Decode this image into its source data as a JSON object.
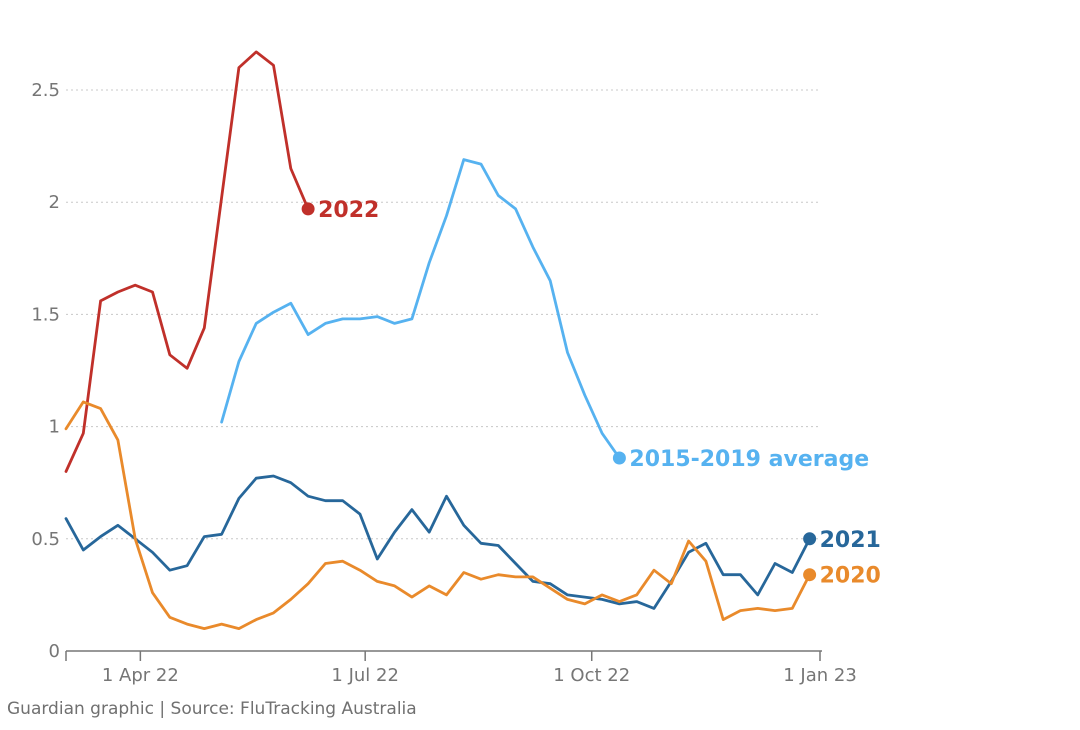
{
  "source": "Guardian graphic | Source: FluTracking Australia",
  "chart_data": {
    "type": "line",
    "y_ticks": [
      0,
      0.5,
      1,
      1.5,
      2,
      2.5
    ],
    "y_tick_labels": [
      "0",
      "0.5",
      "1",
      "1.5",
      "2",
      "2.5"
    ],
    "ylim": [
      0,
      2.65
    ],
    "x_ticks": [
      {
        "week": 4.3,
        "label": "1 Apr 22"
      },
      {
        "week": 17.3,
        "label": "1 Jul 22"
      },
      {
        "week": 30.4,
        "label": "1 Oct 22"
      },
      {
        "week": 43.6,
        "label": "1 Jan 23"
      }
    ],
    "xlim": [
      0,
      43.6
    ],
    "grid": true,
    "series": [
      {
        "name": "2022",
        "color": "#c0302a",
        "label_dx": 10,
        "values": [
          0.8,
          0.97,
          1.56,
          1.6,
          1.63,
          1.6,
          1.32,
          1.26,
          1.44,
          2.02,
          2.6,
          2.67,
          2.61,
          2.15,
          1.97
        ]
      },
      {
        "name": "2015-2019 average",
        "color": "#56b2f0",
        "label_dx": 10,
        "values": [
          null,
          null,
          null,
          null,
          null,
          null,
          null,
          null,
          null,
          1.02,
          1.29,
          1.46,
          1.51,
          1.55,
          1.41,
          1.46,
          1.48,
          1.48,
          1.49,
          1.46,
          1.48,
          1.73,
          1.94,
          2.19,
          2.17,
          2.03,
          1.97,
          1.8,
          1.65,
          1.33,
          1.14,
          0.97,
          0.86
        ]
      },
      {
        "name": "2021",
        "color": "#27679a",
        "label_dx": 10,
        "values": [
          0.59,
          0.45,
          0.51,
          0.56,
          0.5,
          0.44,
          0.36,
          0.38,
          0.51,
          0.52,
          0.68,
          0.77,
          0.78,
          0.75,
          0.69,
          0.67,
          0.67,
          0.61,
          0.41,
          0.53,
          0.63,
          0.53,
          0.69,
          0.56,
          0.48,
          0.47,
          0.39,
          0.31,
          0.3,
          0.25,
          0.24,
          0.23,
          0.21,
          0.22,
          0.19,
          0.31,
          0.44,
          0.48,
          0.34,
          0.34,
          0.25,
          0.39,
          0.35,
          0.5
        ]
      },
      {
        "name": "2020",
        "color": "#e98a2b",
        "label_dx": 10,
        "values": [
          0.99,
          1.11,
          1.08,
          0.94,
          0.5,
          0.26,
          0.15,
          0.12,
          0.1,
          0.12,
          0.1,
          0.14,
          0.17,
          0.23,
          0.3,
          0.39,
          0.4,
          0.36,
          0.31,
          0.29,
          0.24,
          0.29,
          0.25,
          0.35,
          0.32,
          0.34,
          0.33,
          0.33,
          0.28,
          0.23,
          0.21,
          0.25,
          0.22,
          0.25,
          0.36,
          0.3,
          0.49,
          0.4,
          0.14,
          0.18,
          0.19,
          0.18,
          0.19,
          0.34
        ]
      }
    ]
  }
}
